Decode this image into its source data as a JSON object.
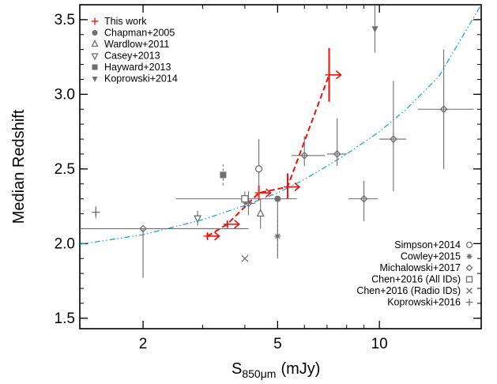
{
  "chart_data": {
    "type": "scatter",
    "title": "",
    "xlabel_main": "S",
    "xlabel_sub": "850μm",
    "xlabel_unit": "(mJy)",
    "ylabel": "Median Redshift",
    "xscale": "log",
    "xlim": [
      1.3,
      20
    ],
    "ylim": [
      1.43,
      3.6
    ],
    "x_ticks": [
      2,
      5,
      10
    ],
    "x_tick_labels": [
      "2",
      "5",
      "10"
    ],
    "y_ticks": [
      1.5,
      2.0,
      2.5,
      3.0,
      3.5
    ],
    "y_tick_labels": [
      "1.5",
      "2.0",
      "2.5",
      "3.0",
      "3.5"
    ],
    "colors": {
      "red": "#e8120c",
      "gray": "#6e6e6e",
      "cyan": "#1aa6d6"
    },
    "legend_top": [
      {
        "label": "This work",
        "marker": "plus",
        "color": "#e8120c"
      },
      {
        "label": "Chapman+2005",
        "marker": "circle-filled",
        "color": "#6e6e6e"
      },
      {
        "label": "Wardlow+2011",
        "marker": "triangle-up-open",
        "color": "#6e6e6e"
      },
      {
        "label": "Casey+2013",
        "marker": "triangle-down-open",
        "color": "#6e6e6e"
      },
      {
        "label": "Hayward+2013",
        "marker": "square-filled",
        "color": "#6e6e6e"
      },
      {
        "label": "Koprowski+2014",
        "marker": "triangle-down-filled",
        "color": "#6e6e6e"
      }
    ],
    "legend_bottom": [
      {
        "label": "Simpson+2014",
        "marker": "circle-open"
      },
      {
        "label": "Cowley+2015",
        "marker": "asterisk"
      },
      {
        "label": "Michalowski+2017",
        "marker": "diamond-open"
      },
      {
        "label": "Chen+2016 (All IDs)",
        "marker": "square-open"
      },
      {
        "label": "Chen+2016 (Radio IDs)",
        "marker": "cross"
      },
      {
        "label": "Koprowski+2016",
        "marker": "plus"
      }
    ],
    "series": [
      {
        "name": "This work",
        "color": "#e8120c",
        "marker": "plus",
        "connect": "dashed",
        "points": [
          {
            "x": 3.1,
            "y": 2.05,
            "yerr": [
              0.02,
              0.02
            ],
            "arrow": true
          },
          {
            "x": 3.55,
            "y": 2.13,
            "yerr": [
              0.02,
              0.02
            ],
            "arrow": true
          },
          {
            "x": 4.4,
            "y": 2.34,
            "yerr": [
              0.05,
              0.05
            ],
            "arrow": true
          },
          {
            "x": 5.35,
            "y": 2.38,
            "yerr": [
              0.08,
              0.09
            ],
            "arrow": true
          },
          {
            "x": 7.1,
            "y": 3.13,
            "yerr": [
              0.18,
              0.18
            ],
            "arrow": true
          }
        ]
      },
      {
        "name": "Chapman+2005",
        "marker": "circle-filled",
        "points": [
          {
            "x": 5.0,
            "y": 2.3,
            "yerr": [
              0.4,
              0.0
            ]
          }
        ]
      },
      {
        "name": "Wardlow+2011",
        "marker": "triangle-up-open",
        "points": [
          {
            "x": 4.45,
            "y": 2.2,
            "yerr": [
              0.1,
              0.1
            ]
          }
        ]
      },
      {
        "name": "Casey+2013",
        "marker": "triangle-down-open",
        "points": [
          {
            "x": 2.9,
            "y": 2.17,
            "yerr": [
              0.05,
              0.05
            ]
          }
        ]
      },
      {
        "name": "Hayward+2013",
        "marker": "square-filled",
        "points": [
          {
            "x": 3.45,
            "y": 2.46,
            "yerr": [
              0.07,
              0.07
            ],
            "dashed_err": true
          }
        ]
      },
      {
        "name": "Koprowski+2014",
        "marker": "triangle-down-filled",
        "points": [
          {
            "x": 9.7,
            "y": 3.44,
            "yerr": [
              0.16,
              0.16
            ]
          }
        ]
      },
      {
        "name": "Simpson+2014",
        "marker": "circle-open",
        "points": [
          {
            "x": 4.4,
            "y": 2.5,
            "yerr": [
              0.2,
              0.2
            ]
          }
        ]
      },
      {
        "name": "Cowley+2015",
        "marker": "asterisk",
        "points": [
          {
            "x": 5.0,
            "y": 2.05,
            "yerr": [
              0.13,
              0.13
            ],
            "dashed_err": true
          }
        ]
      },
      {
        "name": "Michalowski+2017",
        "marker": "diamond-open",
        "points": [
          {
            "x": 2.0,
            "y": 2.1,
            "xerr": [
              0.7,
              2.1
            ],
            "yerr": [
              0.33,
              0.0
            ]
          },
          {
            "x": 4.1,
            "y": 2.27,
            "xerr": [
              0.15,
              0.2
            ],
            "yerr": [
              0.08,
              0.08
            ]
          },
          {
            "x": 6.0,
            "y": 2.59,
            "xerr": [
              0.5,
              0.9
            ],
            "yerr": [
              0.07,
              0.13
            ]
          },
          {
            "x": 7.5,
            "y": 2.6,
            "xerr": [
              0.5,
              0.5
            ],
            "yerr": [
              0.08,
              0.24
            ]
          },
          {
            "x": 9.0,
            "y": 2.3,
            "xerr": [
              0.9,
              0.9
            ],
            "yerr": [
              0.15,
              0.12
            ]
          },
          {
            "x": 11.0,
            "y": 2.7,
            "xerr": [
              1.0,
              1.0
            ],
            "yerr": [
              0.35,
              0.39
            ]
          },
          {
            "x": 15.5,
            "y": 2.9,
            "xerr": [
              2.5,
              3.5
            ],
            "yerr": [
              0.4,
              0.4
            ]
          }
        ]
      },
      {
        "name": "Chen+2016 (All IDs)",
        "marker": "square-open",
        "points": [
          {
            "x": 4.0,
            "y": 2.3,
            "xerr": [
              1.5,
              1.7
            ],
            "yerr": [
              0.05,
              0.05
            ]
          }
        ]
      },
      {
        "name": "Chen+2016 (Radio IDs)",
        "marker": "cross",
        "points": [
          {
            "x": 4.0,
            "y": 1.9,
            "yerr": [
              0.0,
              0.0
            ]
          }
        ]
      },
      {
        "name": "Koprowski+2016",
        "marker": "plus",
        "points": [
          {
            "x": 1.45,
            "y": 2.21,
            "yerr": [
              0.04,
              0.04
            ]
          }
        ]
      }
    ],
    "model_curve": {
      "style": "dash-dot-dot",
      "color": "#1aa6d6",
      "points": [
        [
          1.3,
          1.995
        ],
        [
          2,
          2.06
        ],
        [
          3,
          2.16
        ],
        [
          4,
          2.255
        ],
        [
          5,
          2.34
        ],
        [
          6,
          2.43
        ],
        [
          7,
          2.52
        ],
        [
          8,
          2.6
        ],
        [
          10,
          2.75
        ],
        [
          12,
          2.9
        ],
        [
          15,
          3.12
        ],
        [
          20,
          3.6
        ]
      ]
    }
  }
}
